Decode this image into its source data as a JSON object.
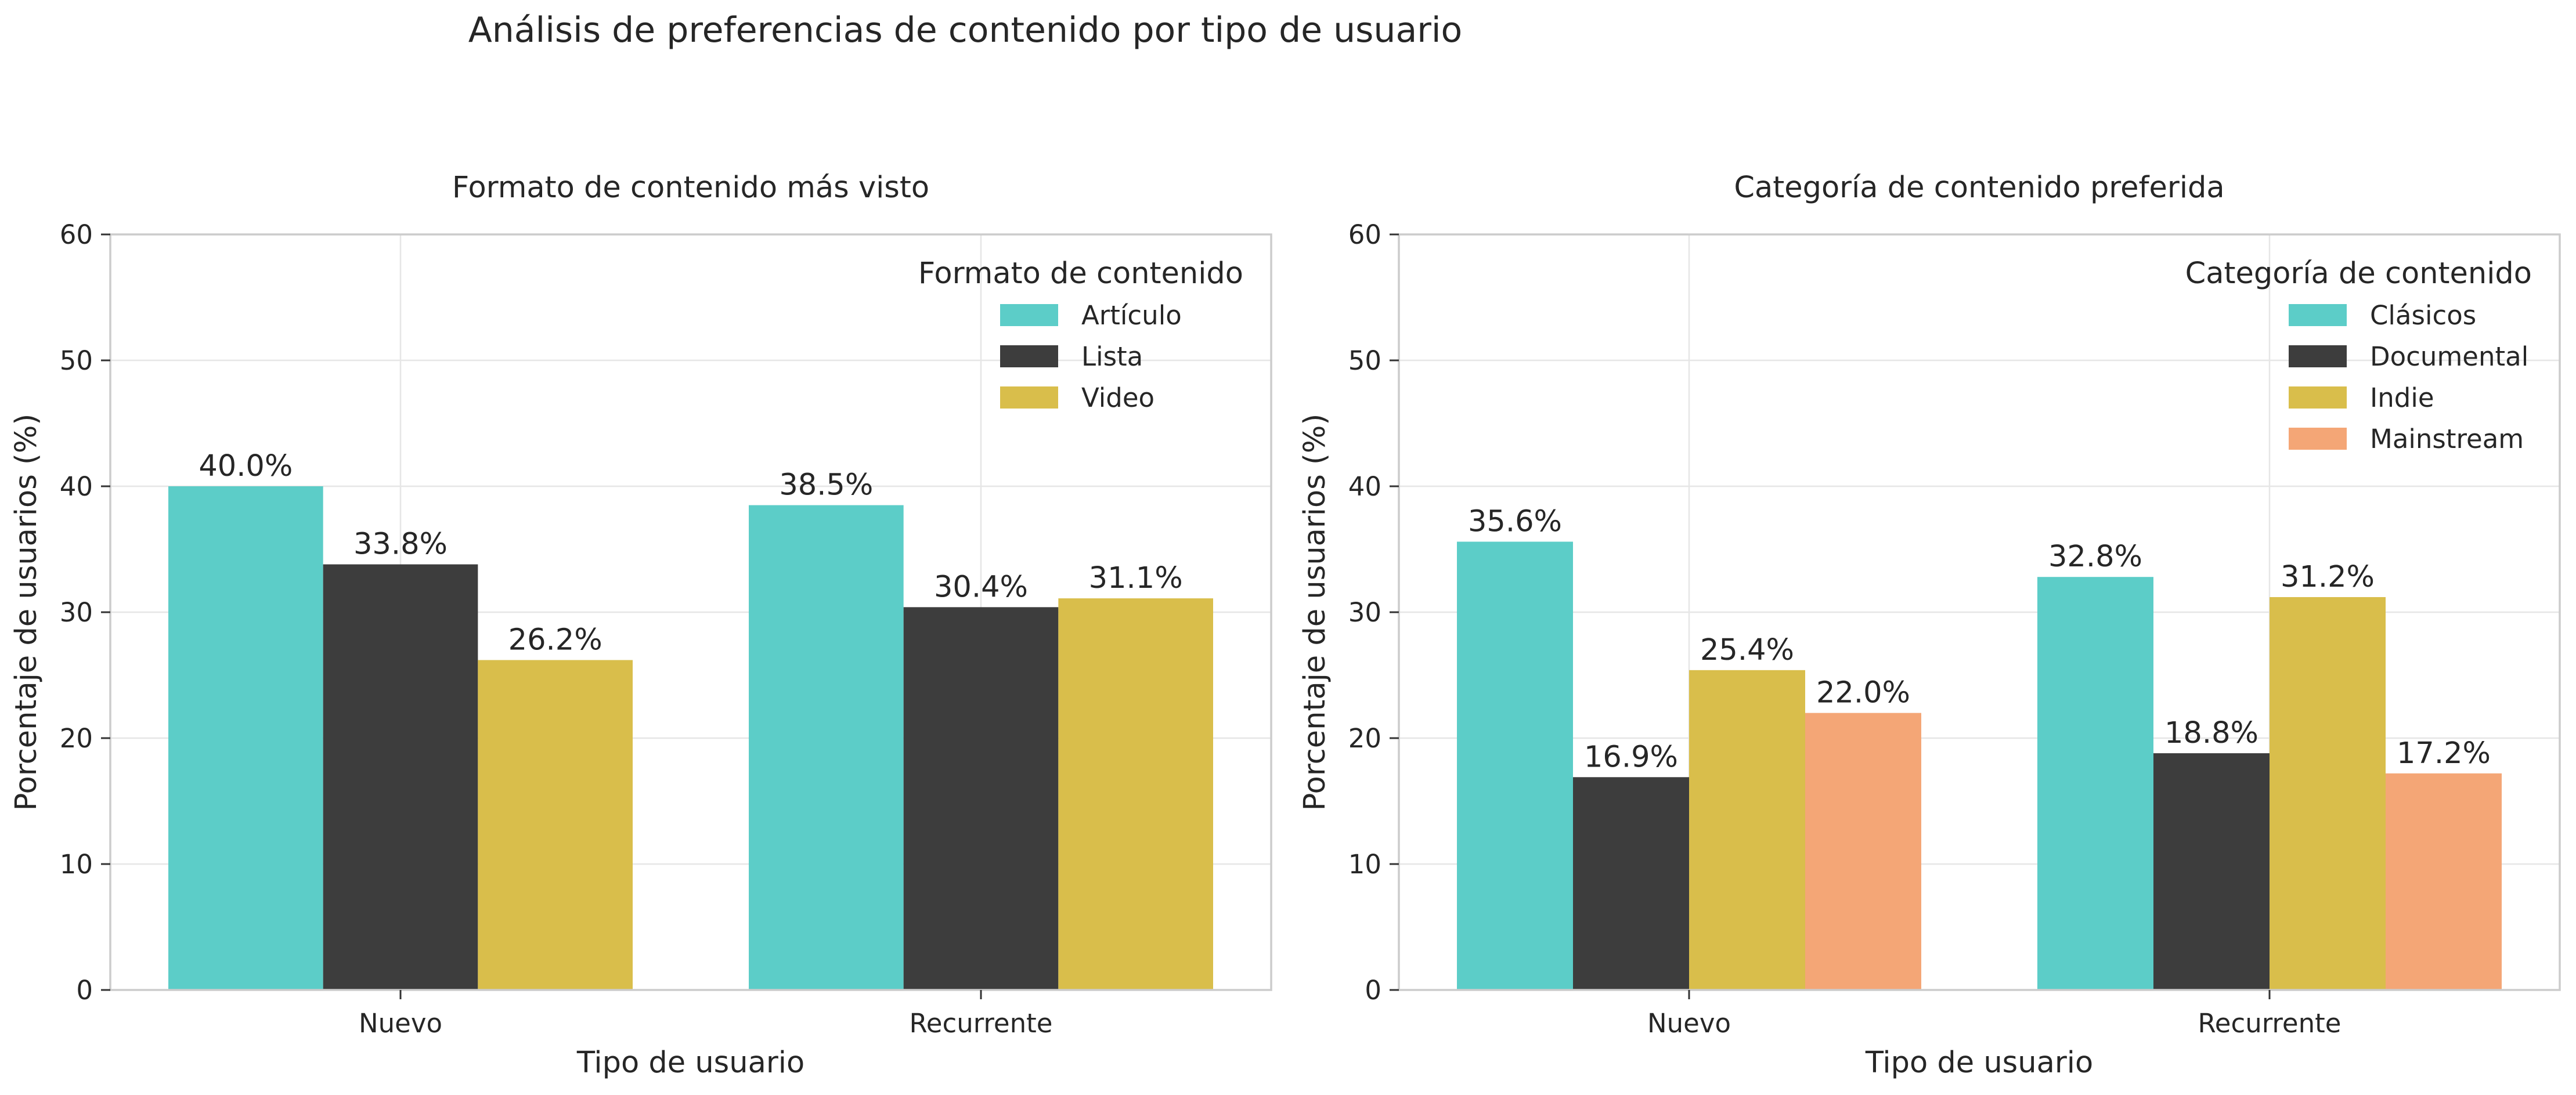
{
  "title": "Análisis de preferencias de contenido por tipo de usuario",
  "chart_data": [
    {
      "type": "bar",
      "title": "Formato de contenido más visto",
      "xlabel": "Tipo de usuario",
      "ylabel": "Porcentaje de usuarios (%)",
      "categories": [
        "Nuevo",
        "Recurrente"
      ],
      "ylim": [
        0,
        60
      ],
      "yticks": [
        0,
        10,
        20,
        30,
        40,
        50,
        60
      ],
      "grid": true,
      "legend_title": "Formato de contenido",
      "legend_position": "top-right",
      "series": [
        {
          "name": "Artículo",
          "color": "#5ccdc8",
          "values": [
            40.0,
            38.5
          ],
          "labels": [
            "40.0%",
            "38.5%"
          ]
        },
        {
          "name": "Lista",
          "color": "#3d3d3d",
          "values": [
            33.8,
            30.4
          ],
          "labels": [
            "33.8%",
            "30.4%"
          ]
        },
        {
          "name": "Video",
          "color": "#d9be4b",
          "values": [
            26.2,
            31.1
          ],
          "labels": [
            "26.2%",
            "31.1%"
          ]
        }
      ]
    },
    {
      "type": "bar",
      "title": "Categoría de contenido preferida",
      "xlabel": "Tipo de usuario",
      "ylabel": "Porcentaje de usuarios (%)",
      "categories": [
        "Nuevo",
        "Recurrente"
      ],
      "ylim": [
        0,
        60
      ],
      "yticks": [
        0,
        10,
        20,
        30,
        40,
        50,
        60
      ],
      "grid": true,
      "legend_title": "Categoría de contenido",
      "legend_position": "top-right",
      "series": [
        {
          "name": "Clásicos",
          "color": "#5ccdc8",
          "values": [
            35.6,
            32.8
          ],
          "labels": [
            "35.6%",
            "32.8%"
          ]
        },
        {
          "name": "Documental",
          "color": "#3d3d3d",
          "values": [
            16.9,
            18.8
          ],
          "labels": [
            "16.9%",
            "18.8%"
          ]
        },
        {
          "name": "Indie",
          "color": "#d9be4b",
          "values": [
            25.4,
            31.2
          ],
          "labels": [
            "25.4%",
            "31.2%"
          ]
        },
        {
          "name": "Mainstream",
          "color": "#f4a676",
          "values": [
            22.0,
            17.2
          ],
          "labels": [
            "22.0%",
            "17.2%"
          ]
        }
      ]
    }
  ]
}
